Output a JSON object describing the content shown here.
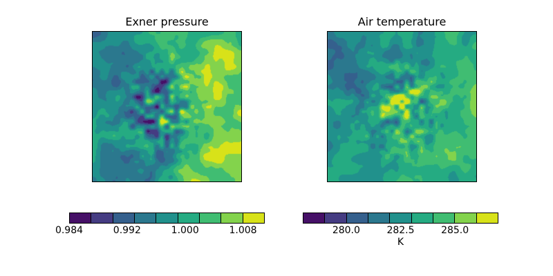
{
  "colors": {
    "background": "#ffffff",
    "frame": "#000000",
    "text": "#000000",
    "viridis_palette": [
      "#461067",
      "#453c82",
      "#35608d",
      "#2b788e",
      "#21918c",
      "#25ab82",
      "#40bd72",
      "#83d34c",
      "#d8e219"
    ]
  },
  "panels": [
    {
      "title": "Exner pressure",
      "colorbar": {
        "orientation": "horizontal",
        "segments": 9,
        "tick_labels": [
          "0.984",
          "0.992",
          "1.000",
          "1.008"
        ]
      }
    },
    {
      "title": "Air temperature",
      "colorbar": {
        "orientation": "horizontal",
        "segments": 9,
        "tick_labels": [
          "280.0",
          "282.5",
          "285.0"
        ],
        "unit_label": "K"
      }
    }
  ],
  "chart_data": [
    {
      "type": "heatmap",
      "title": "Exner pressure",
      "colormap": "viridis",
      "levels": [
        0.984,
        0.987,
        0.99,
        0.993,
        0.996,
        0.999,
        1.002,
        1.005,
        1.008,
        1.011
      ],
      "value_range": [
        0.984,
        1.011
      ],
      "colorbar_ticks": [
        0.984,
        0.992,
        1.0,
        1.008
      ],
      "units": "",
      "legend_position": "horizontal colorbar below plot",
      "grid": false,
      "description": "Filled contour field: low values (dark blue / teal) over the left half with fine-scale noisy minima (down to dark purple) in the centre; smooth high values (yellow-green) covering the right side and bottom-right."
    },
    {
      "type": "heatmap",
      "title": "Air temperature",
      "colormap": "viridis",
      "levels": [
        278,
        279,
        280,
        281,
        282,
        283,
        284,
        285,
        286,
        287
      ],
      "value_range": [
        278,
        287
      ],
      "colorbar_ticks": [
        280.0,
        282.5,
        285.0
      ],
      "units": "K",
      "legend_position": "horizontal colorbar below plot",
      "grid": false,
      "description": "Filled contour field: mostly mid-range teal/green; cooler blue-teal patches toward the upper-left and left edge; noisy fine-scale cold minima in the centre; warmer green and yellow-green patches right of centre and near the bottom-right."
    }
  ]
}
